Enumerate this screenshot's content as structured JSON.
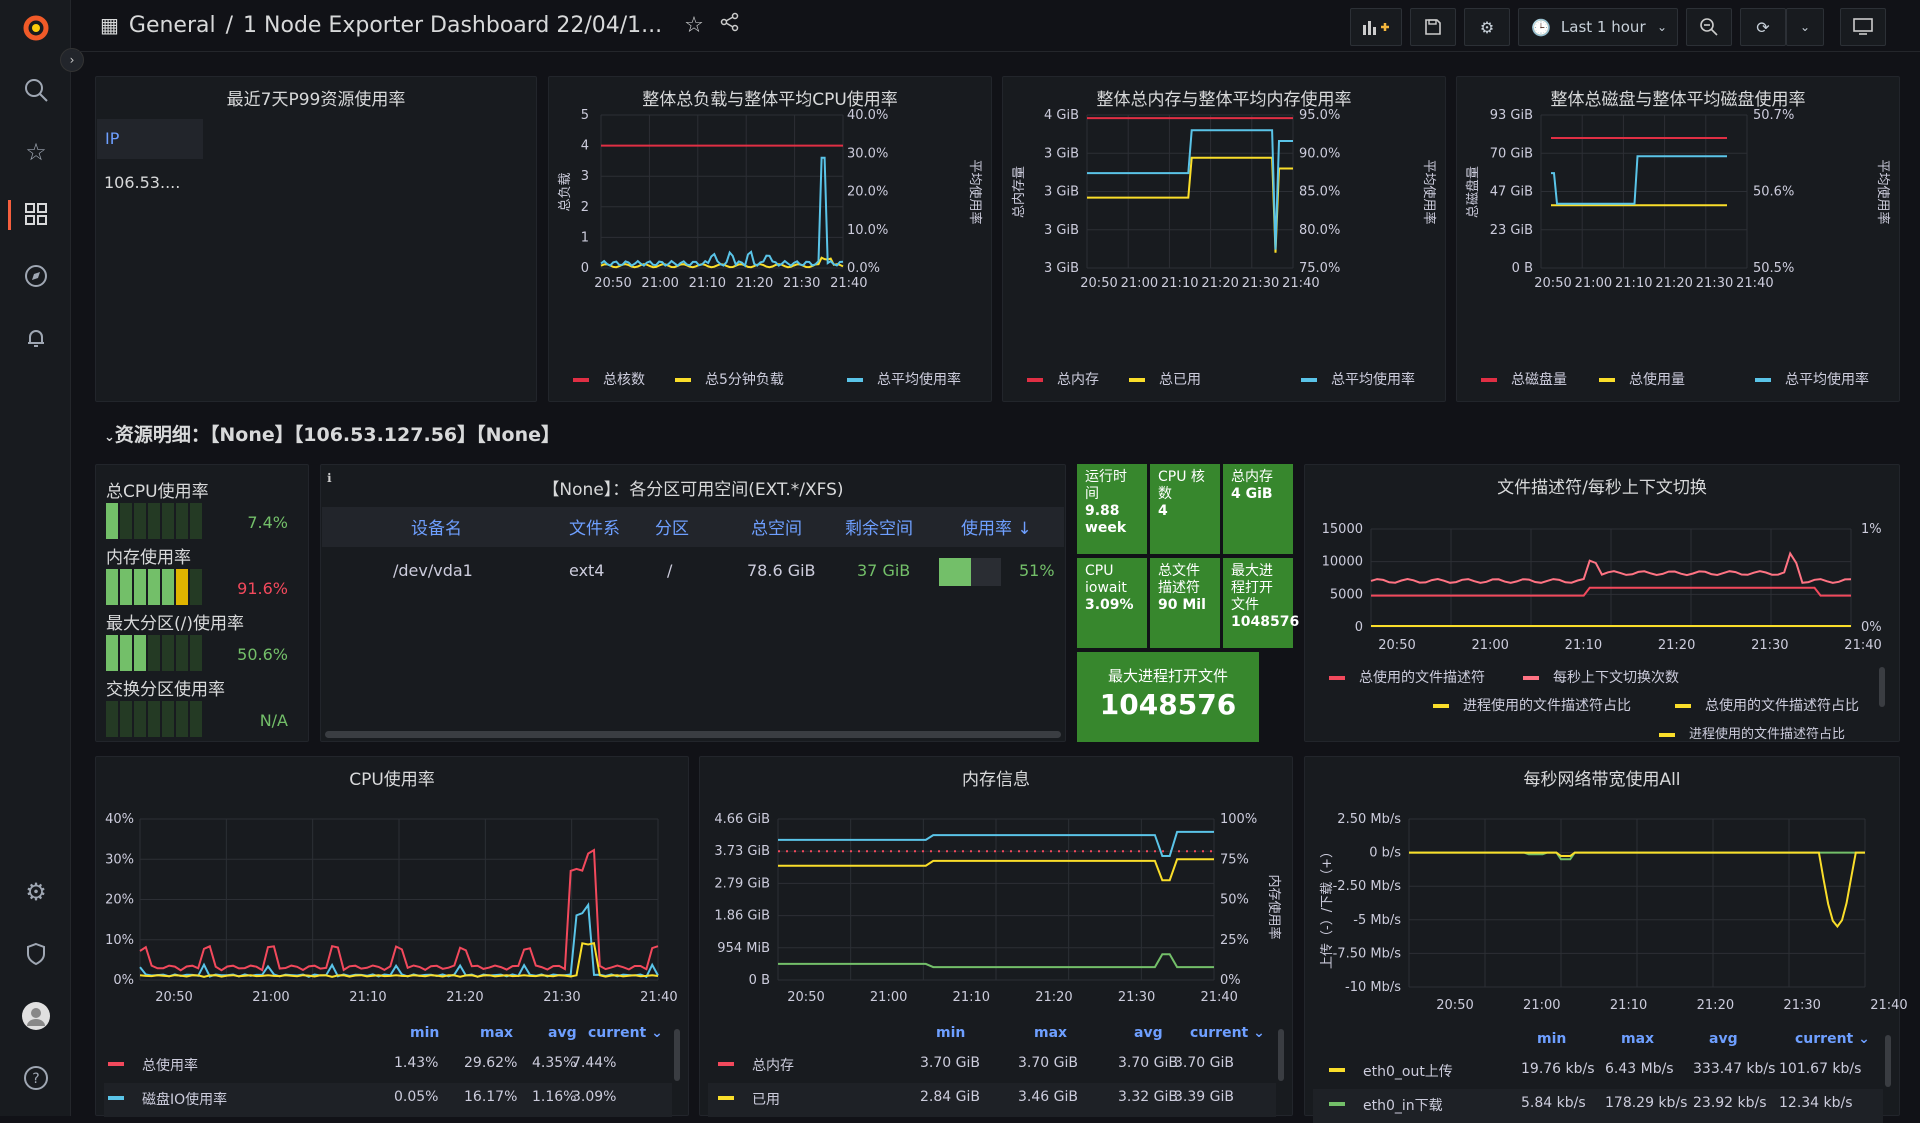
{
  "header": {
    "breadcrumb_root": "General",
    "breadcrumb_sep": "/",
    "dashboard_title": "1 Node Exporter Dashboard 22/04/1...",
    "time_range": "Last 1 hour"
  },
  "row": {
    "title": "资源明细：【None】【106.53.127.56】【None】"
  },
  "p99": {
    "title": "最近7天P99资源使用率",
    "col": "IP",
    "val": "106.53...."
  },
  "cpuload": {
    "title": "整体总负载与整体平均CPU使用率",
    "yleft": "总负载",
    "yright": "平均使用率",
    "lticks": [
      "5",
      "4",
      "3",
      "2",
      "1",
      "0"
    ],
    "rticks": [
      "40.0%",
      "30.0%",
      "20.0%",
      "10.0%",
      "0.0%"
    ],
    "xticks": [
      "20:50",
      "21:00",
      "21:10",
      "21:20",
      "21:30",
      "21:40"
    ],
    "legend": [
      "总核数",
      "总5分钟负载",
      "总平均使用率"
    ]
  },
  "mem": {
    "title": "整体总内存与整体平均内存使用率",
    "yleft": "总内存量",
    "yright": "平均使用率",
    "lticks": [
      "4 GiB",
      "3 GiB",
      "3 GiB",
      "3 GiB",
      "3 GiB"
    ],
    "rticks": [
      "95.0%",
      "90.0%",
      "85.0%",
      "80.0%",
      "75.0%"
    ],
    "xticks": [
      "20:50",
      "21:00",
      "21:10",
      "21:20",
      "21:30",
      "21:40"
    ],
    "legend": [
      "总内存",
      "总已用",
      "总平均使用率"
    ]
  },
  "disk": {
    "title": "整体总磁盘与整体平均磁盘使用率",
    "yleft": "总磁盘量",
    "yright": "平均使用率",
    "lticks": [
      "93 GiB",
      "70 GiB",
      "47 GiB",
      "23 GiB",
      "0 B"
    ],
    "rticks": [
      "50.7%",
      "50.6%",
      "50.5%"
    ],
    "xticks": [
      "20:50",
      "21:00",
      "21:10",
      "21:20",
      "21:30",
      "21:40"
    ],
    "legend": [
      "总磁盘量",
      "总使用量",
      "总平均使用率"
    ]
  },
  "gauges": [
    {
      "label": "总CPU使用率",
      "value": "7.4%",
      "color": "#73bf69",
      "fill": 0.074
    },
    {
      "label": "内存使用率",
      "value": "91.6%",
      "color": "#f2495c",
      "fill": 0.916
    },
    {
      "label": "最大分区(/)使用率",
      "value": "50.6%",
      "color": "#73bf69",
      "fill": 0.506
    },
    {
      "label": "交换分区使用率",
      "value": "N/A",
      "color": "#73bf69",
      "fill": 0
    }
  ],
  "fstable": {
    "title": "【None】：各分区可用空间(EXT.*/XFS)",
    "headers": [
      "设备名",
      "文件系",
      "分区",
      "总空间",
      "剩余空间",
      "使用率 ↓"
    ],
    "row": [
      "/dev/vda1",
      "ext4",
      "/",
      "78.6 GiB",
      "37 GiB",
      "51%"
    ],
    "usage": 0.51
  },
  "stats": [
    {
      "title": "运行时间",
      "value": "9.88 week"
    },
    {
      "title": "CPU 核数",
      "value": "4"
    },
    {
      "title": "总内存",
      "value": "4 GiB"
    },
    {
      "title": "CPU iowait",
      "value": "3.09%"
    },
    {
      "title": "总文件描述符",
      "value": "90 Mil"
    },
    {
      "title": "最大进程打开文件",
      "value": "1048576"
    }
  ],
  "maxopen": {
    "title": "最大进程打开文件",
    "value": "1048576"
  },
  "fd": {
    "title": "文件描述符/每秒上下文切换",
    "lticks": [
      "15000",
      "10000",
      "5000",
      "0"
    ],
    "rticks": [
      "1%",
      "0%"
    ],
    "xticks": [
      "20:50",
      "21:00",
      "21:10",
      "21:20",
      "21:30",
      "21:40"
    ],
    "legend": [
      "总使用的文件描述符",
      "每秒上下文切换次数",
      "进程使用的文件描述符占比",
      "总使用的文件描述符占比",
      "进程使用的文件描述符占比"
    ]
  },
  "cpu": {
    "title": "CPU使用率",
    "yticks": [
      "40%",
      "30%",
      "20%",
      "10%",
      "0%"
    ],
    "xticks": [
      "20:50",
      "21:00",
      "21:10",
      "21:20",
      "21:30",
      "21:40"
    ],
    "cols": [
      "min",
      "max",
      "avg",
      "current ⌄"
    ],
    "rows": [
      {
        "name": "总使用率",
        "color": "#f2495c",
        "v": [
          "1.43%",
          "29.62%",
          "4.35%",
          "7.44%"
        ]
      },
      {
        "name": "磁盘IO使用率",
        "color": "#5ac4e8",
        "v": [
          "0.05%",
          "16.17%",
          "1.16%",
          "3.09%"
        ]
      }
    ]
  },
  "meminfo": {
    "title": "内存信息",
    "yticks": [
      "4.66 GiB",
      "3.73 GiB",
      "2.79 GiB",
      "1.86 GiB",
      "954 MiB",
      "0 B"
    ],
    "rticks": [
      "100%",
      "75%",
      "50%",
      "25%",
      "0%"
    ],
    "yright": "内存使用率",
    "xticks": [
      "20:50",
      "21:00",
      "21:10",
      "21:20",
      "21:30",
      "21:40"
    ],
    "cols": [
      "min",
      "max",
      "avg",
      "current ⌄"
    ],
    "rows": [
      {
        "name": "总内存",
        "color": "#f2495c",
        "v": [
          "3.70 GiB",
          "3.70 GiB",
          "3.70 GiB",
          "3.70 GiB"
        ]
      },
      {
        "name": "已用",
        "color": "#fade2a",
        "v": [
          "2.84 GiB",
          "3.46 GiB",
          "3.32 GiB",
          "3.39 GiB"
        ]
      }
    ]
  },
  "net": {
    "title": "每秒网络带宽使用All",
    "yticks": [
      "2.50 Mb/s",
      "0 b/s",
      "-2.50 Mb/s",
      "-5 Mb/s",
      "-7.50 Mb/s",
      "-10 Mb/s"
    ],
    "ylabel": "上传（-）/下载（+）",
    "xticks": [
      "20:50",
      "21:00",
      "21:10",
      "21:20",
      "21:30",
      "21:40"
    ],
    "cols": [
      "min",
      "max",
      "avg",
      "current ⌄"
    ],
    "rows": [
      {
        "name": "eth0_out上传",
        "color": "#fade2a",
        "v": [
          "19.76 kb/s",
          "6.43 Mb/s",
          "333.47 kb/s",
          "101.67 kb/s"
        ]
      },
      {
        "name": "eth0_in下载",
        "color": "#73bf69",
        "v": [
          "5.84 kb/s",
          "178.29 kb/s",
          "23.92 kb/s",
          "12.34 kb/s"
        ]
      }
    ]
  }
}
